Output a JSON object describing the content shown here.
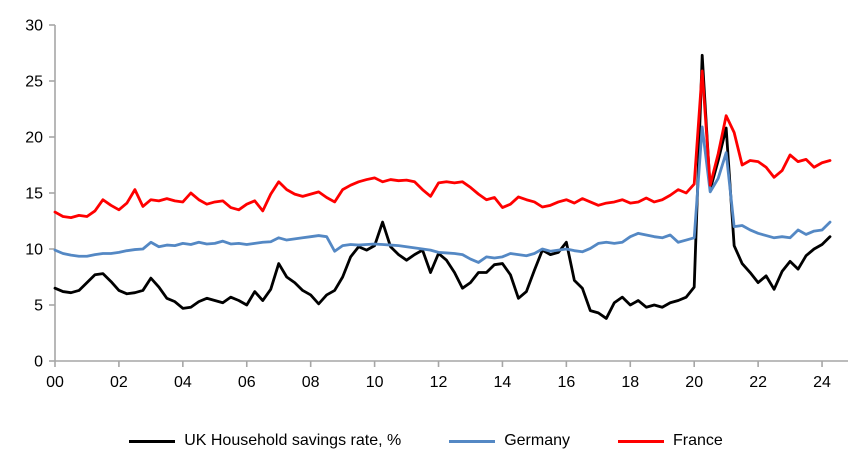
{
  "chart_data": {
    "type": "line",
    "title": "",
    "xlabel": "",
    "ylabel": "",
    "x_unit": "quarter",
    "x_start": "2000Q1",
    "x_end": "2024Q2",
    "ylim": [
      0,
      30
    ],
    "y_ticks": [
      0,
      5,
      10,
      15,
      20,
      25,
      30
    ],
    "x_tick_labels": [
      "00",
      "02",
      "04",
      "06",
      "08",
      "10",
      "12",
      "14",
      "16",
      "18",
      "20",
      "22",
      "24"
    ],
    "x_tick_step_years": 2,
    "grid": false,
    "legend_position": "bottom",
    "axis_color": "#a6a6a6",
    "series": [
      {
        "name": "UK Household savings rate, %",
        "color": "#000000",
        "values": [
          6.5,
          6.2,
          6.1,
          6.3,
          7.0,
          7.7,
          7.8,
          7.1,
          6.3,
          6.0,
          6.1,
          6.3,
          7.4,
          6.6,
          5.6,
          5.3,
          4.7,
          4.8,
          5.3,
          5.6,
          5.4,
          5.2,
          5.7,
          5.4,
          5.0,
          6.2,
          5.4,
          6.4,
          8.7,
          7.5,
          7.0,
          6.3,
          5.9,
          5.1,
          5.9,
          6.3,
          7.5,
          9.3,
          10.2,
          9.9,
          10.3,
          12.4,
          10.2,
          9.5,
          9.0,
          9.5,
          9.9,
          7.9,
          9.6,
          9.0,
          7.9,
          6.5,
          7.0,
          7.9,
          7.9,
          8.6,
          8.7,
          7.7,
          5.6,
          6.2,
          8.1,
          9.9,
          9.5,
          9.7,
          10.6,
          7.2,
          6.5,
          4.5,
          4.3,
          3.8,
          5.2,
          5.7,
          5.0,
          5.4,
          4.8,
          5.0,
          4.8,
          5.2,
          5.4,
          5.7,
          6.6,
          27.3,
          15.3,
          17.9,
          20.8,
          10.3,
          8.7,
          7.9,
          7.0,
          7.6,
          6.4,
          8.0,
          8.9,
          8.2,
          9.4,
          10.0,
          10.4,
          11.1
        ]
      },
      {
        "name": "Germany",
        "color": "#5488c4",
        "values": [
          9.9,
          9.6,
          9.45,
          9.35,
          9.35,
          9.5,
          9.6,
          9.6,
          9.7,
          9.85,
          9.95,
          10.0,
          10.6,
          10.2,
          10.35,
          10.3,
          10.5,
          10.4,
          10.6,
          10.45,
          10.5,
          10.7,
          10.45,
          10.5,
          10.4,
          10.5,
          10.6,
          10.65,
          11.0,
          10.8,
          10.9,
          11.0,
          11.1,
          11.2,
          11.1,
          9.8,
          10.3,
          10.4,
          10.35,
          10.4,
          10.45,
          10.4,
          10.35,
          10.3,
          10.2,
          10.1,
          10.0,
          9.9,
          9.7,
          9.65,
          9.6,
          9.5,
          9.1,
          8.8,
          9.3,
          9.2,
          9.3,
          9.6,
          9.5,
          9.4,
          9.6,
          10.0,
          9.8,
          9.9,
          10.0,
          9.85,
          9.75,
          10.05,
          10.5,
          10.6,
          10.5,
          10.6,
          11.1,
          11.4,
          11.25,
          11.1,
          11.0,
          11.25,
          10.6,
          10.8,
          11.0,
          20.9,
          15.1,
          16.3,
          18.6,
          12.0,
          12.1,
          11.7,
          11.4,
          11.2,
          11.0,
          11.1,
          11.0,
          11.7,
          11.3,
          11.6,
          11.7,
          12.4
        ]
      },
      {
        "name": "France",
        "color": "#ff0000",
        "values": [
          13.3,
          12.9,
          12.8,
          13.0,
          12.9,
          13.4,
          14.4,
          13.9,
          13.5,
          14.1,
          15.3,
          13.8,
          14.4,
          14.3,
          14.5,
          14.3,
          14.2,
          15.0,
          14.4,
          14.0,
          14.2,
          14.3,
          13.7,
          13.5,
          14.0,
          14.3,
          13.4,
          14.9,
          16.0,
          15.3,
          14.9,
          14.7,
          14.9,
          15.1,
          14.6,
          14.2,
          15.3,
          15.7,
          16.0,
          16.2,
          16.35,
          16.0,
          16.2,
          16.1,
          16.15,
          16.0,
          15.3,
          14.7,
          15.9,
          16.0,
          15.9,
          16.0,
          15.5,
          14.9,
          14.4,
          14.6,
          13.7,
          14.0,
          14.65,
          14.4,
          14.2,
          13.75,
          13.9,
          14.2,
          14.4,
          14.1,
          14.5,
          14.2,
          13.9,
          14.1,
          14.2,
          14.4,
          14.1,
          14.2,
          14.55,
          14.2,
          14.4,
          14.8,
          15.3,
          15.0,
          15.8,
          25.9,
          15.7,
          18.5,
          21.9,
          20.4,
          17.5,
          17.9,
          17.8,
          17.3,
          16.4,
          17.0,
          18.4,
          17.8,
          18.0,
          17.3,
          17.7,
          17.9
        ]
      }
    ]
  },
  "legend": {
    "items": [
      {
        "label": "UK Household savings rate, %"
      },
      {
        "label": "Germany"
      },
      {
        "label": "France"
      }
    ]
  }
}
